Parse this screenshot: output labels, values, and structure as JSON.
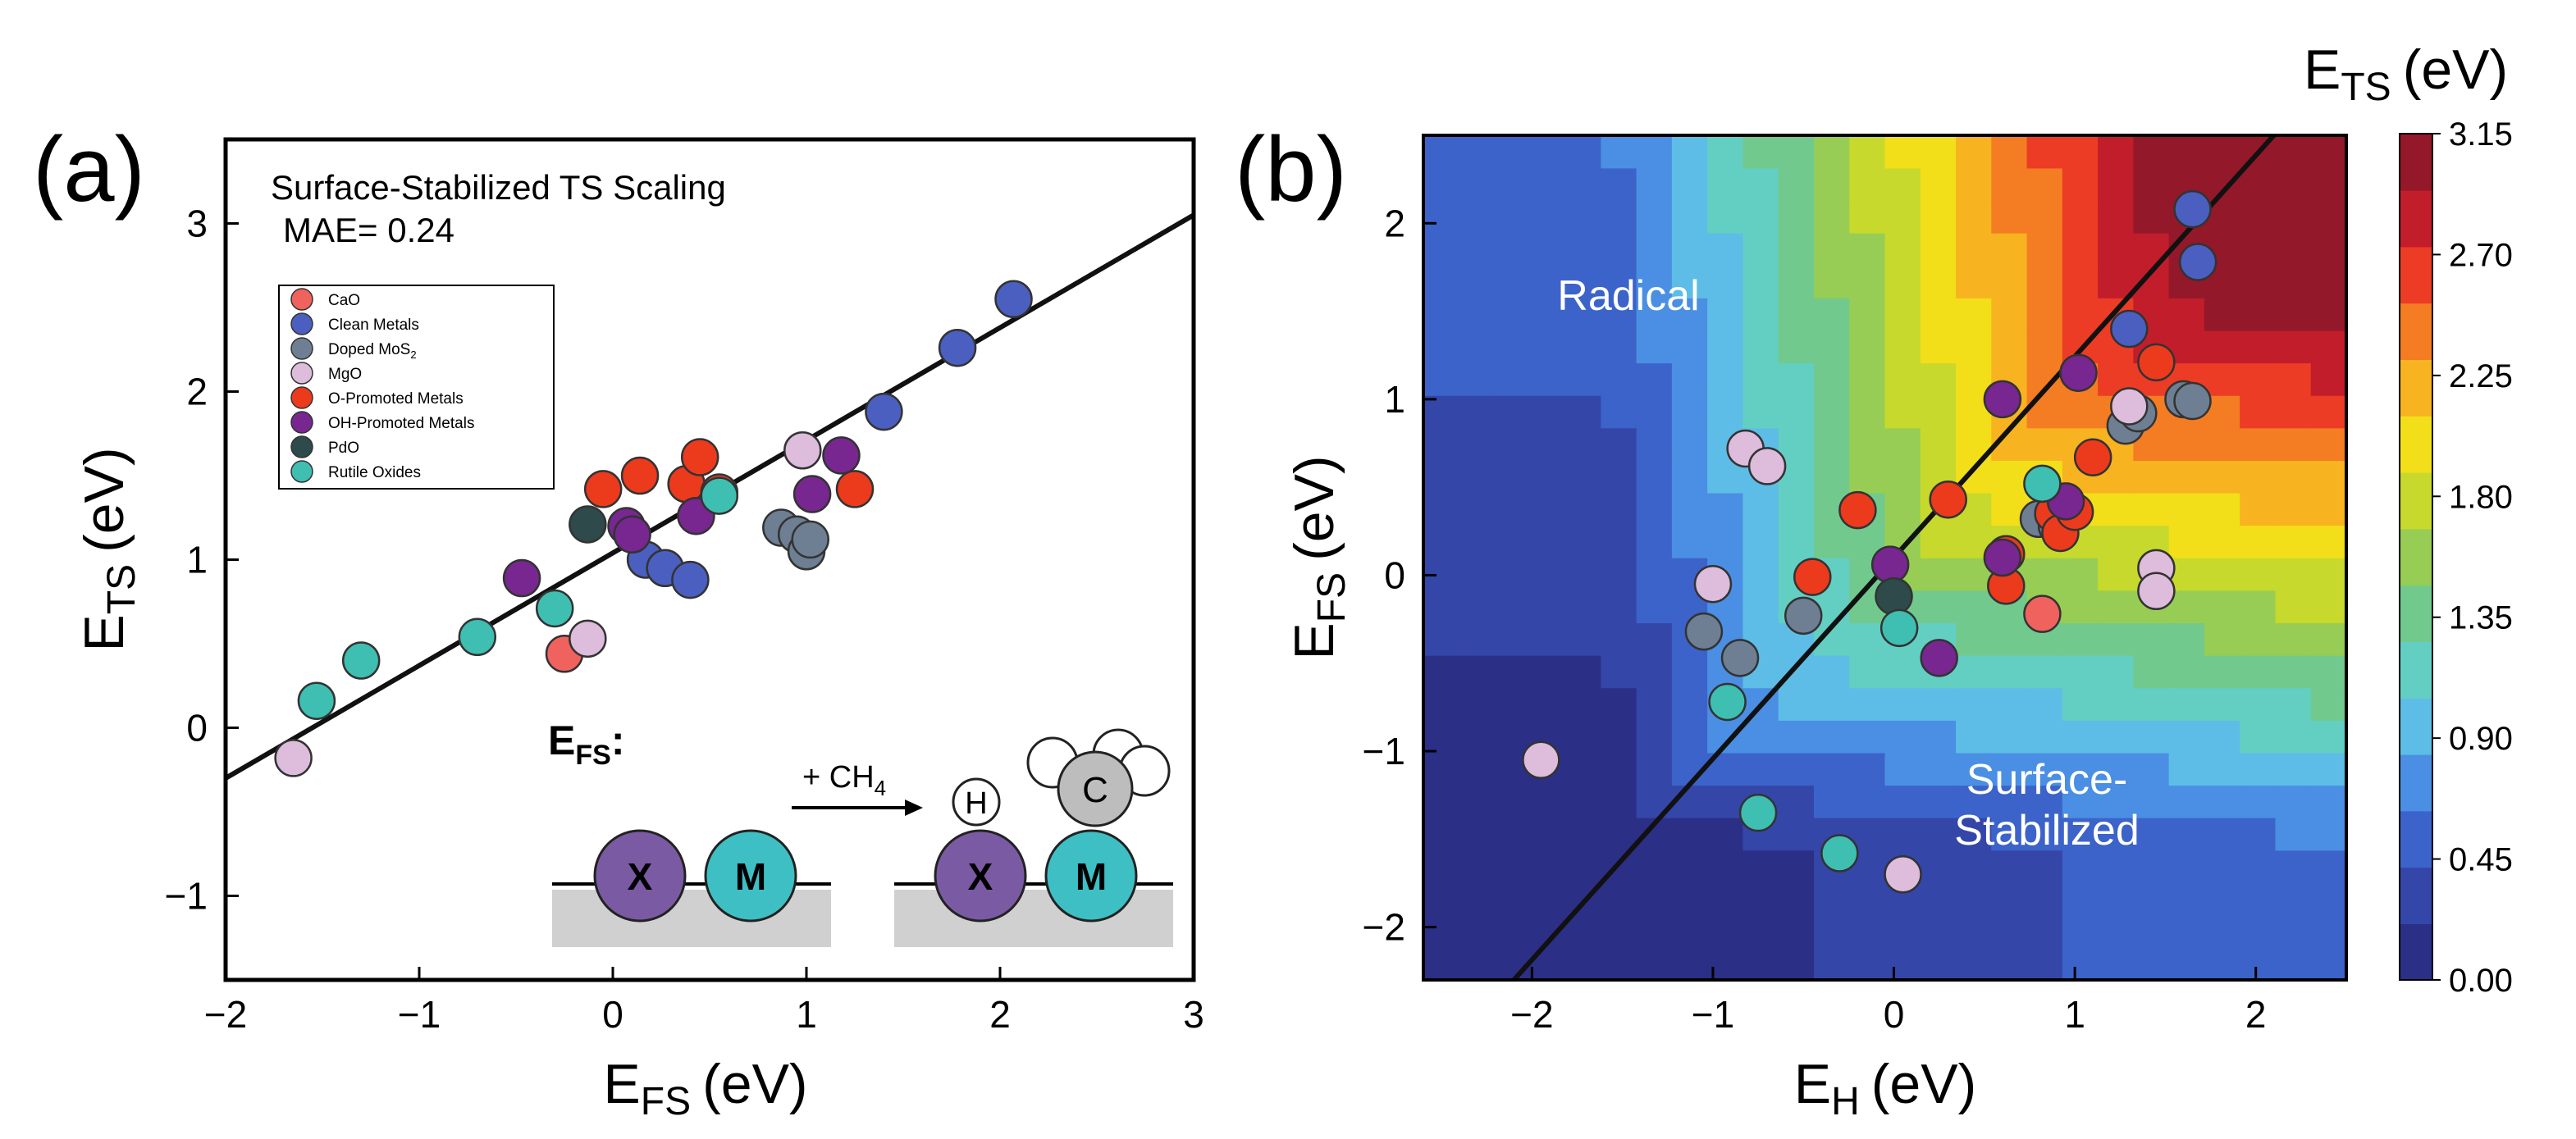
{
  "panels": {
    "a": {
      "label": "(a)"
    },
    "b": {
      "label": "(b)"
    }
  },
  "colors": {
    "CaO": "#f0625e",
    "Clean Metals": "#4b5fc0",
    "Doped MoS2": "#6e7f93",
    "MgO": "#ddbcdc",
    "O-Promoted Metals": "#ec3a1d",
    "OH-Promoted Metals": "#782690",
    "PdO": "#2e4a4a",
    "Rutile Oxides": "#3ebfb1"
  },
  "chart_data": [
    {
      "type": "scatter",
      "panel": "a",
      "title": "Surface-Stabilized TS Scaling",
      "annotation": "MAE= 0.24",
      "xlabel_main": "E",
      "xlabel_sub": "FS",
      "xlabel_unit": "(eV)",
      "ylabel_main": "E",
      "ylabel_sub": "TS",
      "ylabel_unit": "(eV)",
      "xlim": [
        -2,
        3
      ],
      "ylim": [
        -1.5,
        3.5
      ],
      "xticks": [
        -2,
        -1,
        0,
        1,
        2,
        3
      ],
      "yticks": [
        -1,
        0,
        1,
        2,
        3
      ],
      "fit_line": {
        "x": [
          -2,
          3
        ],
        "y": [
          -0.3,
          3.05
        ]
      },
      "legend": {
        "position": "upper-left",
        "entries": [
          {
            "name": "CaO",
            "label": "CaO"
          },
          {
            "name": "Clean Metals",
            "label": "Clean Metals"
          },
          {
            "name": "Doped MoS2",
            "label": "Doped MoS",
            "sub": "2"
          },
          {
            "name": "MgO",
            "label": "MgO"
          },
          {
            "name": "O-Promoted Metals",
            "label": "O-Promoted Metals"
          },
          {
            "name": "OH-Promoted Metals",
            "label": "OH-Promoted Metals"
          },
          {
            "name": "PdO",
            "label": "PdO"
          },
          {
            "name": "Rutile Oxides",
            "label": "Rutile Oxides"
          }
        ]
      },
      "series": [
        {
          "name": "CaO",
          "points": [
            [
              -0.25,
              0.44
            ]
          ]
        },
        {
          "name": "Clean Metals",
          "points": [
            [
              0.17,
              1.0
            ],
            [
              0.27,
              0.95
            ],
            [
              0.4,
              0.88
            ],
            [
              1.4,
              1.88
            ],
            [
              1.78,
              2.26
            ],
            [
              2.07,
              2.55
            ]
          ]
        },
        {
          "name": "Doped MoS2",
          "points": [
            [
              0.87,
              1.19
            ],
            [
              0.95,
              1.15
            ],
            [
              1.0,
              1.05
            ],
            [
              1.02,
              1.12
            ]
          ]
        },
        {
          "name": "MgO",
          "points": [
            [
              -1.65,
              -0.18
            ],
            [
              -0.13,
              0.53
            ],
            [
              0.98,
              1.65
            ]
          ]
        },
        {
          "name": "O-Promoted Metals",
          "points": [
            [
              -0.05,
              1.42
            ],
            [
              0.14,
              1.5
            ],
            [
              0.38,
              1.45
            ],
            [
              0.45,
              1.61
            ],
            [
              0.55,
              1.4
            ],
            [
              1.25,
              1.42
            ]
          ]
        },
        {
          "name": "OH-Promoted Metals",
          "points": [
            [
              -0.47,
              0.89
            ],
            [
              0.07,
              1.2
            ],
            [
              0.1,
              1.15
            ],
            [
              0.43,
              1.26
            ],
            [
              1.03,
              1.39
            ],
            [
              1.18,
              1.62
            ]
          ]
        },
        {
          "name": "PdO",
          "points": [
            [
              -0.13,
              1.21
            ]
          ]
        },
        {
          "name": "Rutile Oxides",
          "points": [
            [
              -1.53,
              0.16
            ],
            [
              -1.3,
              0.4
            ],
            [
              -0.7,
              0.54
            ],
            [
              -0.3,
              0.71
            ],
            [
              0.55,
              1.38
            ]
          ]
        }
      ],
      "inset": {
        "title_main": "E",
        "title_sub": "FS",
        "title_colon": ":",
        "reaction_main": "+ CH",
        "reaction_sub": "4",
        "atom_x": "X",
        "atom_m": "M",
        "atom_h": "H",
        "atom_c": "C"
      }
    },
    {
      "type": "heatmap",
      "panel": "b",
      "xlabel_main": "E",
      "xlabel_sub": "H",
      "xlabel_unit": "(eV)",
      "ylabel_main": "E",
      "ylabel_sub": "FS",
      "ylabel_unit": "(eV)",
      "xlim": [
        -2.6,
        2.5
      ],
      "ylim": [
        -2.3,
        2.5
      ],
      "xticks": [
        -2,
        -1,
        0,
        1,
        2
      ],
      "yticks": [
        -2,
        -1,
        0,
        1,
        2
      ],
      "region_labels": {
        "radical": "Radical",
        "surface_line1": "Surface-",
        "surface_line2": "Stabilized"
      },
      "colorbar": {
        "title_main": "E",
        "title_sub": "TS",
        "title_unit": "(eV)",
        "range": [
          0,
          3.15
        ],
        "ticks": [
          "0.00",
          "0.45",
          "0.90",
          "1.35",
          "1.80",
          "2.25",
          "2.70",
          "3.15"
        ],
        "stops": [
          "#2c2f86",
          "#3446a8",
          "#3c63c9",
          "#4a8fe3",
          "#5dbde6",
          "#63cfc3",
          "#71c98e",
          "#97cd54",
          "#c7d92c",
          "#f2df1a",
          "#f8b320",
          "#f47c22",
          "#ec3c25",
          "#c21d2a",
          "#93182a"
        ]
      },
      "boundary_line": {
        "x": [
          -2.1,
          2.1
        ],
        "y": [
          -2.3,
          2.5
        ]
      },
      "series": [
        {
          "name": "CaO",
          "points": [
            [
              0.82,
              -0.22
            ]
          ]
        },
        {
          "name": "Clean Metals",
          "points": [
            [
              1.3,
              1.4
            ],
            [
              1.65,
              2.08
            ],
            [
              1.68,
              1.78
            ]
          ]
        },
        {
          "name": "Doped MoS2",
          "points": [
            [
              -1.05,
              -0.32
            ],
            [
              -0.85,
              -0.47
            ],
            [
              -0.5,
              -0.23
            ],
            [
              0.8,
              0.32
            ],
            [
              0.9,
              0.28
            ],
            [
              1.28,
              0.85
            ],
            [
              1.35,
              0.92
            ],
            [
              1.6,
              1.0
            ],
            [
              1.65,
              0.99
            ]
          ]
        },
        {
          "name": "MgO",
          "points": [
            [
              -1.95,
              -1.05
            ],
            [
              -1.0,
              -0.05
            ],
            [
              -0.82,
              0.72
            ],
            [
              -0.7,
              0.62
            ],
            [
              0.05,
              -1.7
            ],
            [
              1.3,
              0.96
            ],
            [
              1.45,
              0.04
            ],
            [
              1.45,
              -0.09
            ]
          ]
        },
        {
          "name": "O-Promoted Metals",
          "points": [
            [
              -0.45,
              -0.01
            ],
            [
              -0.2,
              0.37
            ],
            [
              0.3,
              0.43
            ],
            [
              0.62,
              0.12
            ],
            [
              0.62,
              -0.06
            ],
            [
              0.88,
              0.35
            ],
            [
              0.92,
              0.24
            ],
            [
              1.0,
              0.36
            ],
            [
              1.1,
              0.67
            ],
            [
              1.45,
              1.21
            ]
          ]
        },
        {
          "name": "OH-Promoted Metals",
          "points": [
            [
              -0.02,
              0.06
            ],
            [
              0.25,
              -0.47
            ],
            [
              0.6,
              1.0
            ],
            [
              0.6,
              0.1
            ],
            [
              0.95,
              0.42
            ],
            [
              1.02,
              1.15
            ]
          ]
        },
        {
          "name": "PdO",
          "points": [
            [
              0.0,
              -0.12
            ]
          ]
        },
        {
          "name": "Rutile Oxides",
          "points": [
            [
              -0.92,
              -0.72
            ],
            [
              -0.75,
              -1.35
            ],
            [
              -0.3,
              -1.58
            ],
            [
              0.03,
              -0.3
            ],
            [
              0.82,
              0.52
            ]
          ]
        }
      ]
    }
  ]
}
